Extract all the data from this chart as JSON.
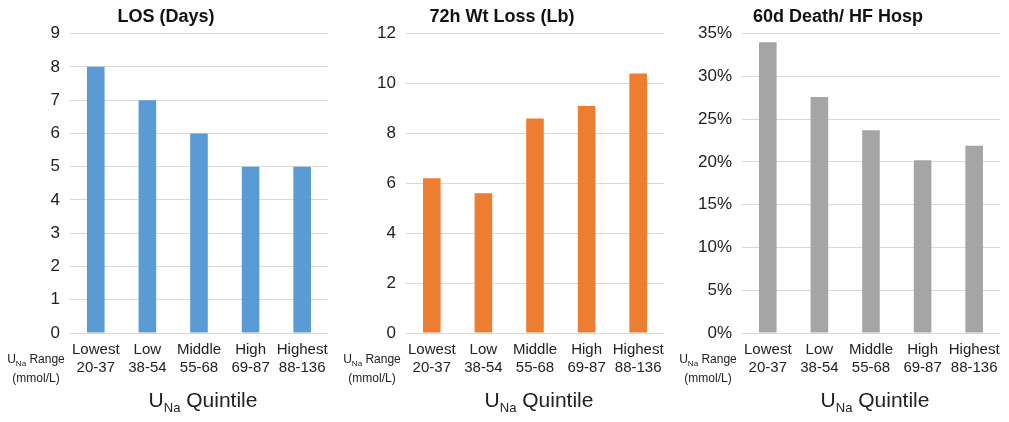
{
  "chart_data": [
    {
      "type": "bar",
      "title": "LOS (Days)",
      "categories": [
        "Lowest\n20-37",
        "Low\n38-54",
        "Middle\n55-68",
        "High\n69-87",
        "Highest\n88-136"
      ],
      "values": [
        8,
        7,
        6,
        5,
        5
      ],
      "color": "#5b9bd5",
      "ylim": [
        0,
        9
      ],
      "yticks": [
        0,
        1,
        2,
        3,
        4,
        5,
        6,
        7,
        8,
        9
      ],
      "grid": "y",
      "xlabel": "U$_{Na}$ Quintile",
      "annotations": [
        "U$_{Na}$ Range\n(mmol/L)"
      ]
    },
    {
      "type": "bar",
      "title": "72h Wt Loss (Lb)",
      "categories": [
        "Lowest\n20-37",
        "Low\n38-54",
        "Middle\n55-68",
        "High\n69-87",
        "Highest\n88-136"
      ],
      "values": [
        6.2,
        5.6,
        8.6,
        9.1,
        10.4
      ],
      "color": "#ed7d31",
      "ylim": [
        0,
        12
      ],
      "yticks": [
        0,
        2,
        4,
        6,
        8,
        10,
        12
      ],
      "grid": "y",
      "xlabel": "U$_{Na}$ Quintile",
      "annotations": [
        "U$_{Na}$ Range\n(mmol/L)"
      ]
    },
    {
      "type": "bar",
      "title": "60d Death/ HF Hosp",
      "categories": [
        "Lowest\n20-37",
        "Low\n38-54",
        "Middle\n55-68",
        "High\n69-87",
        "Highest\n88-136"
      ],
      "values": [
        34,
        27.6,
        23.7,
        20.2,
        21.9
      ],
      "color": "#a5a5a5",
      "ylim": [
        0,
        35
      ],
      "yticks": [
        {
          "value": 0,
          "label": "0%"
        },
        {
          "value": 5,
          "label": "5%"
        },
        {
          "value": 10,
          "label": "10%"
        },
        {
          "value": 15,
          "label": "15%"
        },
        {
          "value": 20,
          "label": "20%"
        },
        {
          "value": 25,
          "label": "25%"
        },
        {
          "value": 30,
          "label": "30%"
        },
        {
          "value": 35,
          "label": "35%"
        }
      ],
      "grid": "y",
      "xlabel": "U$_{Na}$ Quintile",
      "annotations": [
        "U$_{Na}$ Range\n(mmol/L)"
      ]
    }
  ]
}
